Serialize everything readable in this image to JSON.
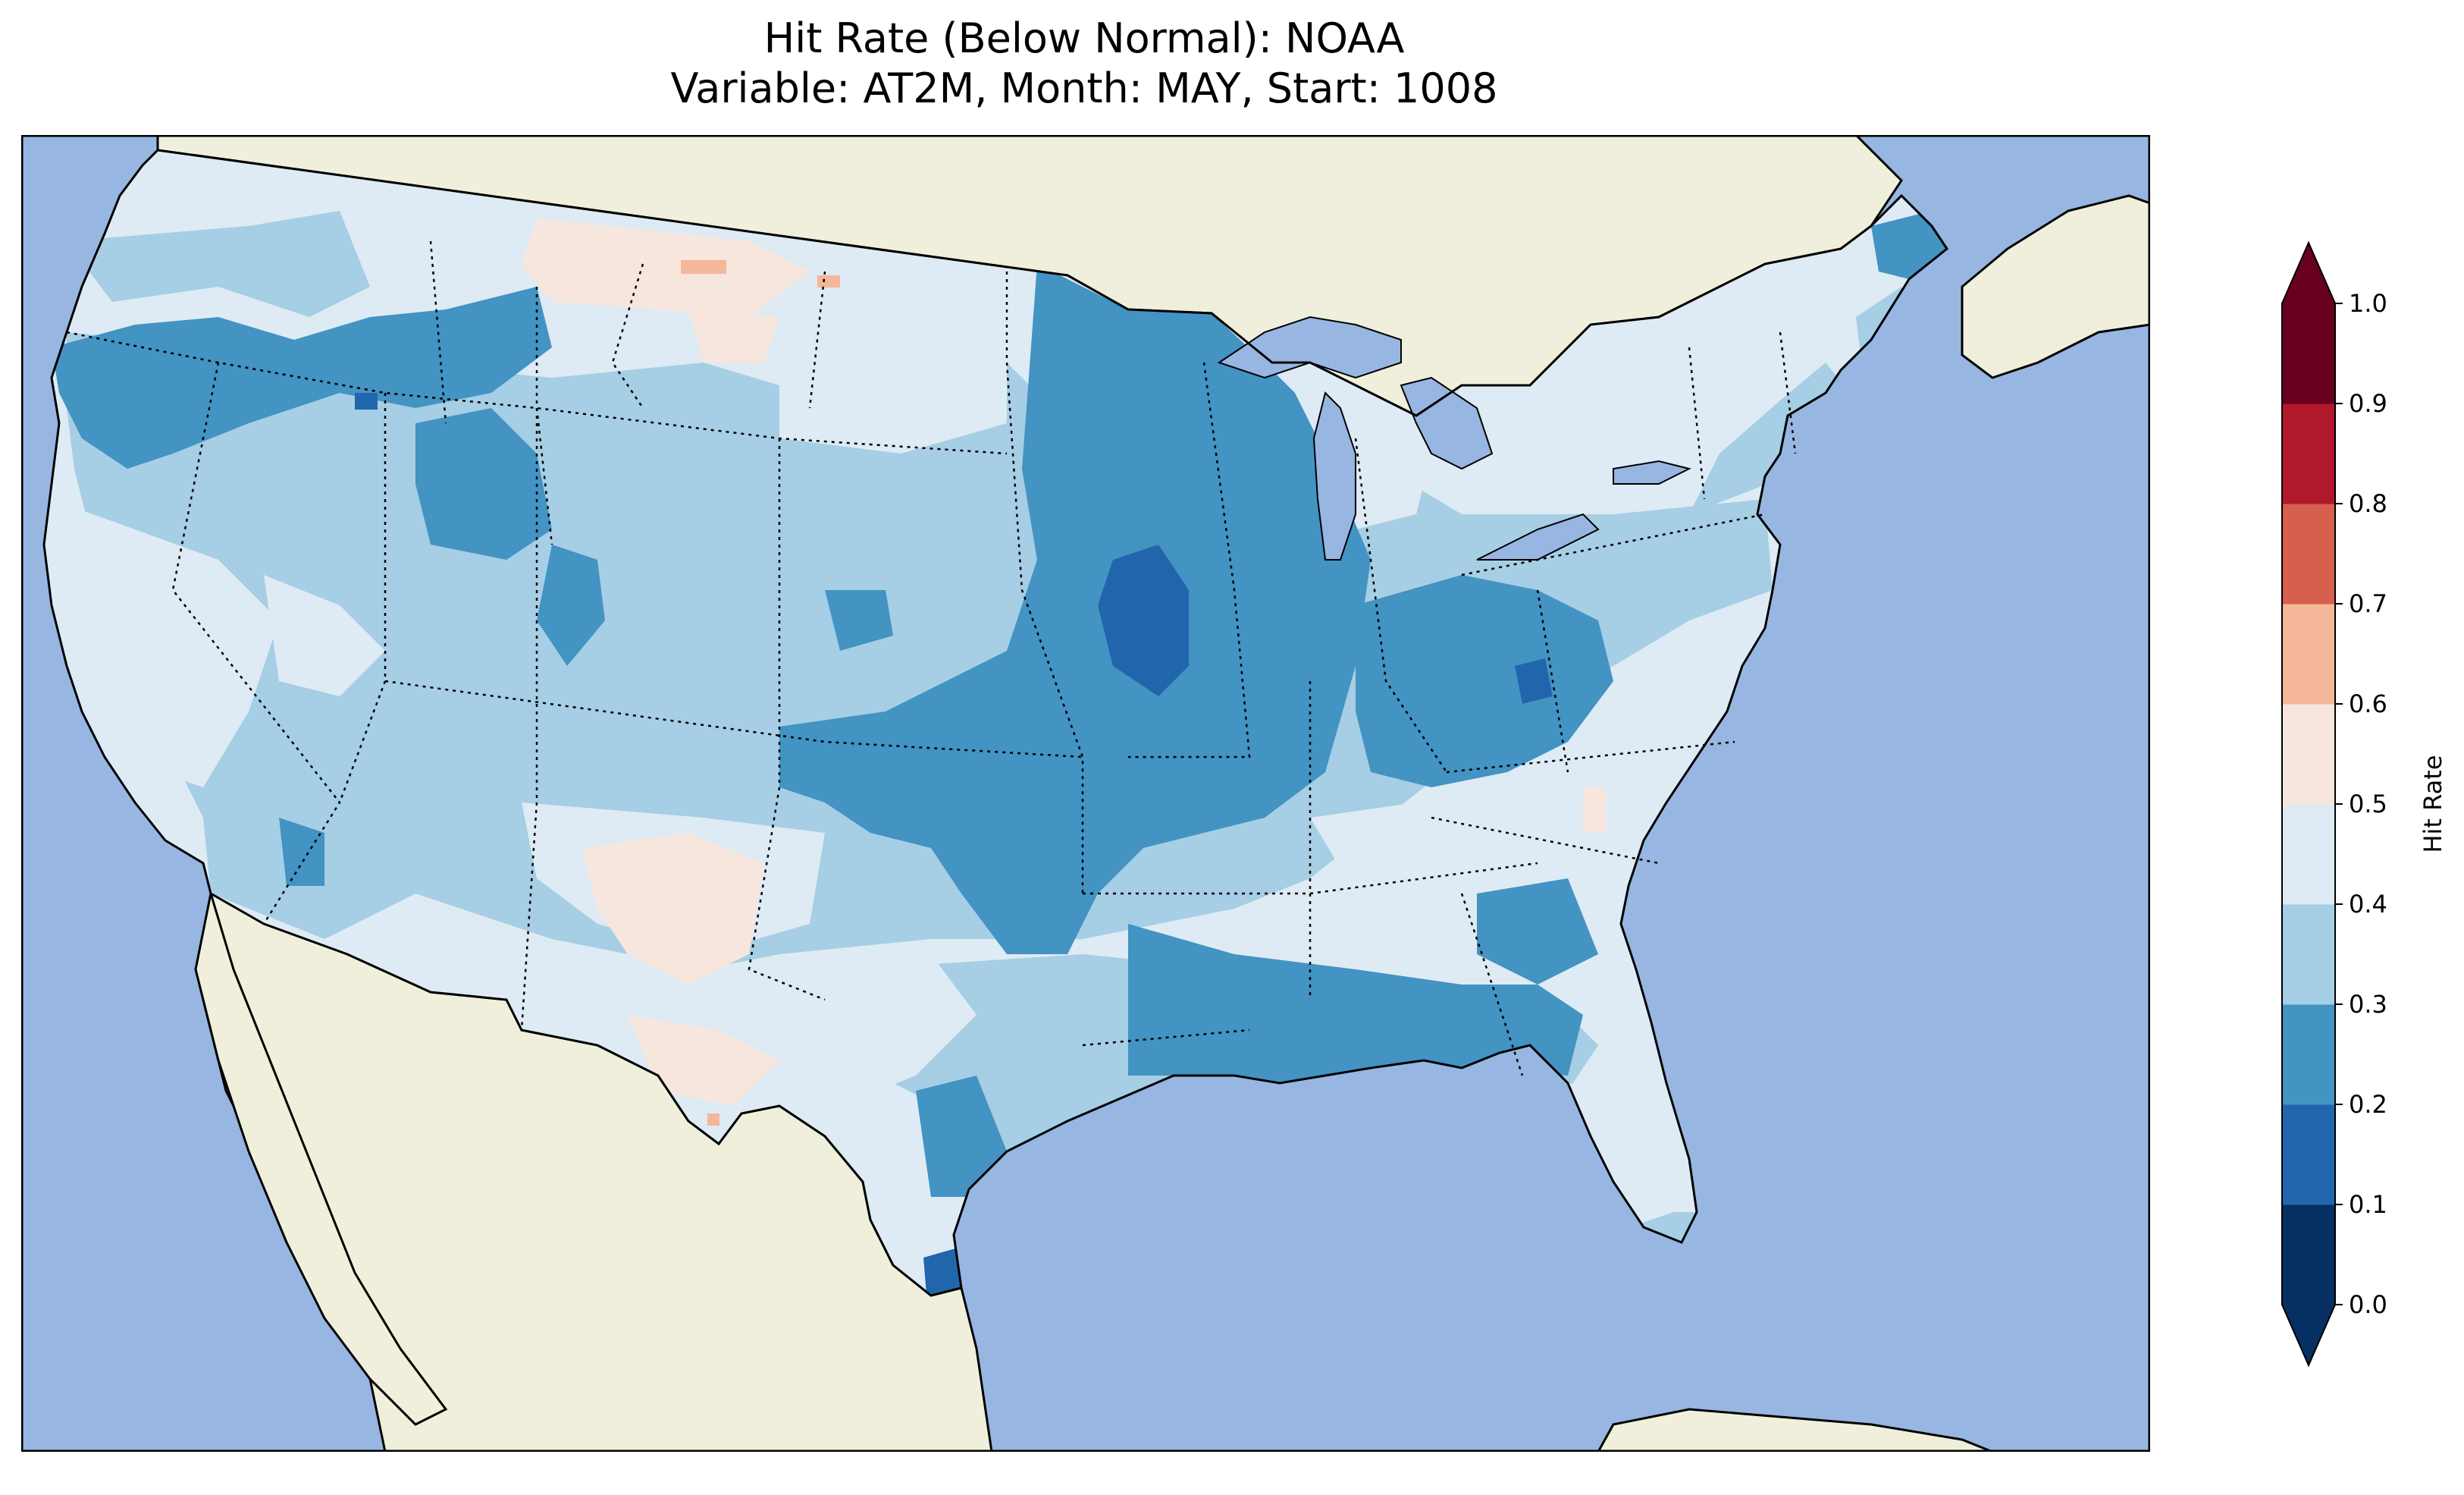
{
  "title": {
    "line1": "Hit Rate (Below Normal): NOAA",
    "line2": "Variable: AT2M, Month: MAY, Start: 1008"
  },
  "colors": {
    "ocean": "#97b6e1",
    "land": "#efefdb",
    "lakes": "#97b6e1",
    "coast": "#000000"
  },
  "colorbar": {
    "label": "Hit Rate",
    "ticks": [
      "0.0",
      "0.1",
      "0.2",
      "0.3",
      "0.4",
      "0.5",
      "0.6",
      "0.7",
      "0.8",
      "0.9",
      "1.0"
    ],
    "bins": [
      {
        "range": [
          0.0,
          0.1
        ],
        "color": "#053061"
      },
      {
        "range": [
          0.1,
          0.2
        ],
        "color": "#2166ac"
      },
      {
        "range": [
          0.2,
          0.3
        ],
        "color": "#4393c3"
      },
      {
        "range": [
          0.3,
          0.4
        ],
        "color": "#a6cee4"
      },
      {
        "range": [
          0.4,
          0.5
        ],
        "color": "#deebf4"
      },
      {
        "range": [
          0.5,
          0.6
        ],
        "color": "#f7e6dd"
      },
      {
        "range": [
          0.6,
          0.7
        ],
        "color": "#f4b79a"
      },
      {
        "range": [
          0.7,
          0.8
        ],
        "color": "#d6604d"
      },
      {
        "range": [
          0.8,
          0.9
        ],
        "color": "#b2182b"
      },
      {
        "range": [
          0.9,
          1.0
        ],
        "color": "#67001f"
      }
    ],
    "extend": "both"
  },
  "chart_data": {
    "type": "heatmap",
    "variable": "AT2M",
    "month": "MAY",
    "start": "1008",
    "value_range": [
      0.0,
      1.0
    ],
    "regions": [
      {
        "region": "Pacific Northwest",
        "bin": [
          0.4,
          0.5
        ]
      },
      {
        "region": "Oregon / Idaho band",
        "bin": [
          0.2,
          0.3
        ]
      },
      {
        "region": "California coast",
        "bin": [
          0.4,
          0.5
        ]
      },
      {
        "region": "Nevada / Utah",
        "bin": [
          0.3,
          0.4
        ]
      },
      {
        "region": "Montana north",
        "bin": [
          0.5,
          0.6
        ]
      },
      {
        "region": "North Dakota",
        "bin": [
          0.4,
          0.5
        ]
      },
      {
        "region": "New Mexico",
        "bin": [
          0.5,
          0.6
        ]
      },
      {
        "region": "West Texas",
        "bin": [
          0.5,
          0.6
        ]
      },
      {
        "region": "Iowa / Missouri core",
        "bin": [
          0.1,
          0.2
        ]
      },
      {
        "region": "Minnesota / Wisconsin",
        "bin": [
          0.2,
          0.3
        ]
      },
      {
        "region": "Ohio Valley",
        "bin": [
          0.2,
          0.3
        ]
      },
      {
        "region": "Gulf Coast",
        "bin": [
          0.2,
          0.3
        ]
      },
      {
        "region": "South Texas coast",
        "bin": [
          0.1,
          0.2
        ]
      },
      {
        "region": "Carolinas",
        "bin": [
          0.4,
          0.5
        ]
      },
      {
        "region": "Florida",
        "bin": [
          0.4,
          0.5
        ]
      },
      {
        "region": "Northeast",
        "bin": [
          0.3,
          0.4
        ]
      },
      {
        "region": "Maine",
        "bin": [
          0.2,
          0.3
        ]
      }
    ]
  }
}
